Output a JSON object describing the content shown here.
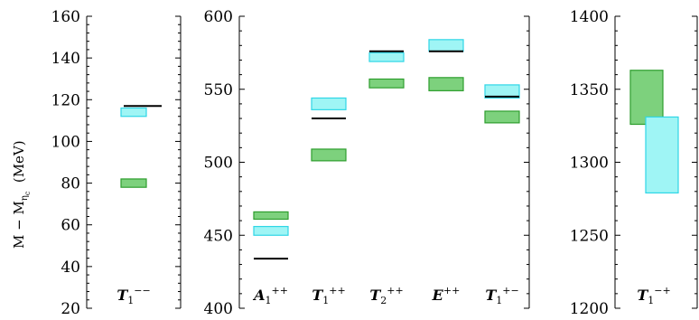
{
  "chart_data": [
    {
      "type": "bar",
      "panel": "left",
      "ylabel": "M − M_ηc (MeV)",
      "ylim": [
        20,
        160
      ],
      "yticks": [
        20,
        40,
        60,
        80,
        100,
        120,
        140,
        160
      ],
      "categories": [
        "T1−−"
      ],
      "category_labels": [
        {
          "base": "T",
          "sub": "1",
          "sup": "−−"
        }
      ],
      "green_boxes": [
        {
          "category": "T1−−",
          "low": 78,
          "high": 82
        }
      ],
      "cyan_boxes": [
        {
          "category": "T1−−",
          "low": 112,
          "high": 116
        }
      ],
      "black_lines": [
        {
          "category": "T1−−",
          "value": 117
        }
      ]
    },
    {
      "type": "bar",
      "panel": "middle",
      "ylim": [
        400,
        600
      ],
      "yticks": [
        400,
        450,
        500,
        550,
        600
      ],
      "categories": [
        "A1++",
        "T1++",
        "T2++",
        "E++",
        "T1+−"
      ],
      "category_labels": [
        {
          "base": "A",
          "sub": "1",
          "sup": "++"
        },
        {
          "base": "T",
          "sub": "1",
          "sup": "++"
        },
        {
          "base": "T",
          "sub": "2",
          "sup": "++"
        },
        {
          "base": "E",
          "sub": "",
          "sup": "++"
        },
        {
          "base": "T",
          "sub": "1",
          "sup": "+−"
        }
      ],
      "green_boxes": [
        {
          "category": "A1++",
          "low": 461,
          "high": 466
        },
        {
          "category": "T1++",
          "low": 501,
          "high": 509
        },
        {
          "category": "T2++",
          "low": 551,
          "high": 557
        },
        {
          "category": "E++",
          "low": 549,
          "high": 558
        },
        {
          "category": "T1+−",
          "low": 527,
          "high": 535
        }
      ],
      "cyan_boxes": [
        {
          "category": "A1++",
          "low": 450,
          "high": 456
        },
        {
          "category": "T1++",
          "low": 536,
          "high": 544
        },
        {
          "category": "T2++",
          "low": 569,
          "high": 575
        },
        {
          "category": "E++",
          "low": 576,
          "high": 584
        },
        {
          "category": "T1+−",
          "low": 544,
          "high": 553
        }
      ],
      "black_lines": [
        {
          "category": "A1++",
          "value": 434
        },
        {
          "category": "T1++",
          "value": 530
        },
        {
          "category": "T2++",
          "value": 576
        },
        {
          "category": "E++",
          "value": 576
        },
        {
          "category": "T1+−",
          "value": 545
        }
      ]
    },
    {
      "type": "bar",
      "panel": "right",
      "ylim": [
        1200,
        1400
      ],
      "yticks": [
        1200,
        1250,
        1300,
        1350,
        1400
      ],
      "categories": [
        "T1−+"
      ],
      "category_labels": [
        {
          "base": "T",
          "sub": "1",
          "sup": "−+"
        }
      ],
      "green_boxes": [
        {
          "category": "T1−+",
          "low": 1326,
          "high": 1363
        }
      ],
      "cyan_boxes": [
        {
          "category": "T1−+",
          "low": 1279,
          "high": 1331
        }
      ],
      "black_lines": []
    }
  ],
  "colors": {
    "green_fill": "#7dd17d",
    "green_stroke": "#2e9e2e",
    "cyan_fill": "#9ff5f5",
    "cyan_stroke": "#2fd6e6",
    "line": "#000000",
    "axis": "#000000"
  }
}
